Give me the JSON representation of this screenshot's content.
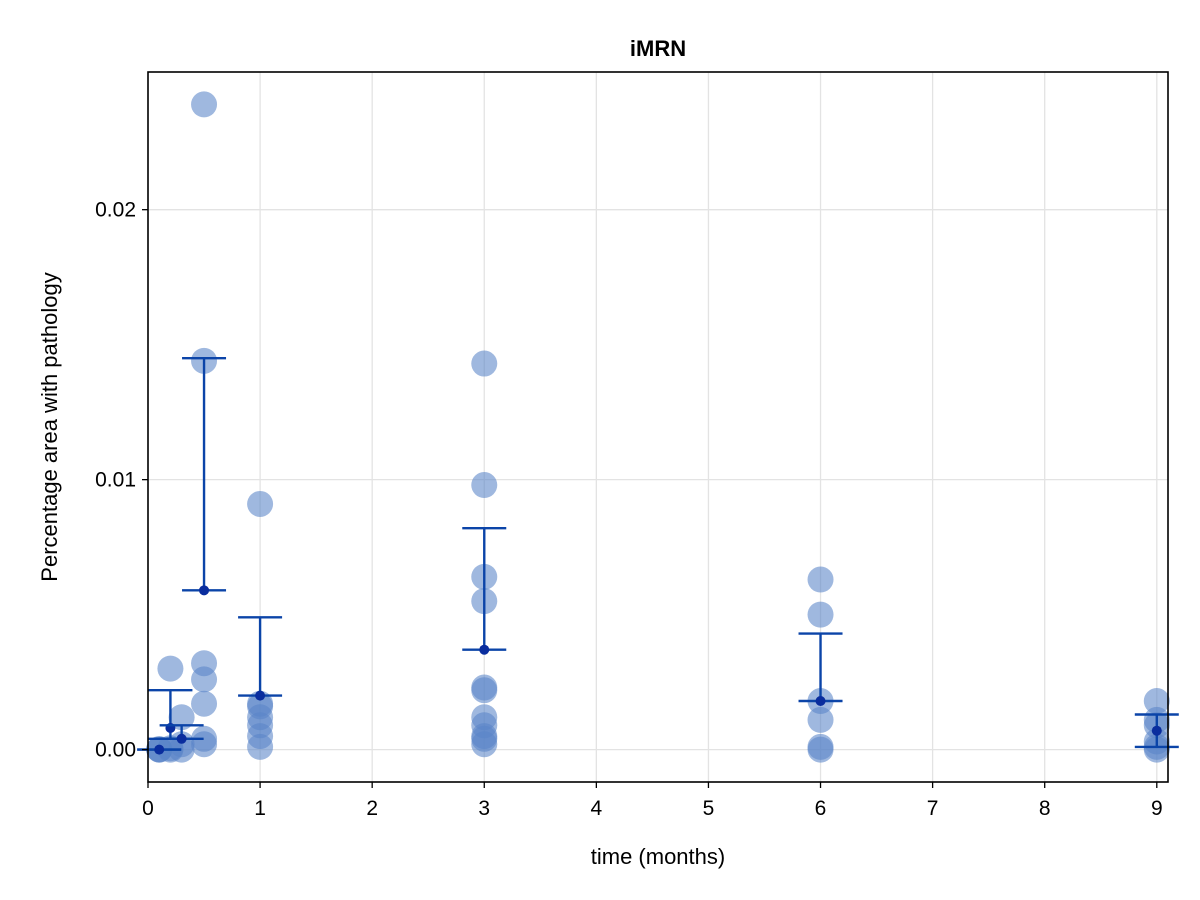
{
  "chart_data": {
    "type": "scatter",
    "title": "iMRN",
    "xlabel": "time (months)",
    "ylabel": "Percentage area with pathology",
    "xlim": [
      0,
      9.1
    ],
    "ylim": [
      -0.0012,
      0.0251
    ],
    "x_ticks": [
      0,
      1,
      2,
      3,
      4,
      5,
      6,
      7,
      8,
      9
    ],
    "y_ticks": [
      0.0,
      0.01,
      0.02
    ],
    "x_tick_labels": [
      "0",
      "1",
      "2",
      "3",
      "4",
      "5",
      "6",
      "7",
      "8",
      "9"
    ],
    "y_tick_labels": [
      "0.00",
      "0.01",
      "0.02"
    ],
    "grid": true,
    "point_color": "#5a85c8",
    "error_color": "#0b44a8",
    "mean_color": "#0a2d9e",
    "points": [
      {
        "x": 0.1,
        "y": 0.0
      },
      {
        "x": 0.1,
        "y": 0.0
      },
      {
        "x": 0.1,
        "y": 2e-05
      },
      {
        "x": 0.2,
        "y": 0.003
      },
      {
        "x": 0.2,
        "y": 5e-05
      },
      {
        "x": 0.2,
        "y": 0.0
      },
      {
        "x": 0.3,
        "y": 0.0012
      },
      {
        "x": 0.3,
        "y": 0.0002
      },
      {
        "x": 0.3,
        "y": 0.0
      },
      {
        "x": 0.5,
        "y": 0.0239
      },
      {
        "x": 0.5,
        "y": 0.0144
      },
      {
        "x": 0.5,
        "y": 0.0032
      },
      {
        "x": 0.5,
        "y": 0.0026
      },
      {
        "x": 0.5,
        "y": 0.0017
      },
      {
        "x": 0.5,
        "y": 0.0004
      },
      {
        "x": 0.5,
        "y": 0.0002
      },
      {
        "x": 1,
        "y": 0.0091
      },
      {
        "x": 1,
        "y": 0.0017
      },
      {
        "x": 1,
        "y": 0.0016
      },
      {
        "x": 1,
        "y": 0.0012
      },
      {
        "x": 1,
        "y": 0.0009
      },
      {
        "x": 1,
        "y": 0.0005
      },
      {
        "x": 1,
        "y": 0.0001
      },
      {
        "x": 3,
        "y": 0.0143
      },
      {
        "x": 3,
        "y": 0.0098
      },
      {
        "x": 3,
        "y": 0.0064
      },
      {
        "x": 3,
        "y": 0.0055
      },
      {
        "x": 3,
        "y": 0.0023
      },
      {
        "x": 3,
        "y": 0.0022
      },
      {
        "x": 3,
        "y": 0.0012
      },
      {
        "x": 3,
        "y": 0.0009
      },
      {
        "x": 3,
        "y": 0.0005
      },
      {
        "x": 3,
        "y": 0.0004
      },
      {
        "x": 3,
        "y": 0.0002
      },
      {
        "x": 6,
        "y": 0.0063
      },
      {
        "x": 6,
        "y": 0.005
      },
      {
        "x": 6,
        "y": 0.0018
      },
      {
        "x": 6,
        "y": 0.0011
      },
      {
        "x": 6,
        "y": 0.0001
      },
      {
        "x": 6,
        "y": 0.0
      },
      {
        "x": 9,
        "y": 0.0018
      },
      {
        "x": 9,
        "y": 0.0011
      },
      {
        "x": 9,
        "y": 0.0009
      },
      {
        "x": 9,
        "y": 0.0003
      },
      {
        "x": 9,
        "y": 0.0001
      },
      {
        "x": 9,
        "y": 0.0
      }
    ],
    "error_bars": [
      {
        "x": 0.1,
        "mean": 0.0,
        "low": 0.0,
        "high": 0.0
      },
      {
        "x": 0.2,
        "mean": 0.0008,
        "low": 0.0004,
        "high": 0.0022
      },
      {
        "x": 0.3,
        "mean": 0.0004,
        "low": 0.0004,
        "high": 0.0009
      },
      {
        "x": 0.5,
        "mean": 0.0059,
        "low": 0.0059,
        "high": 0.0145
      },
      {
        "x": 1,
        "mean": 0.002,
        "low": 0.002,
        "high": 0.0049
      },
      {
        "x": 3,
        "mean": 0.0037,
        "low": 0.0037,
        "high": 0.0082
      },
      {
        "x": 6,
        "mean": 0.0018,
        "low": 0.0018,
        "high": 0.0043
      },
      {
        "x": 9,
        "mean": 0.0007,
        "low": 0.0001,
        "high": 0.0013
      }
    ]
  }
}
